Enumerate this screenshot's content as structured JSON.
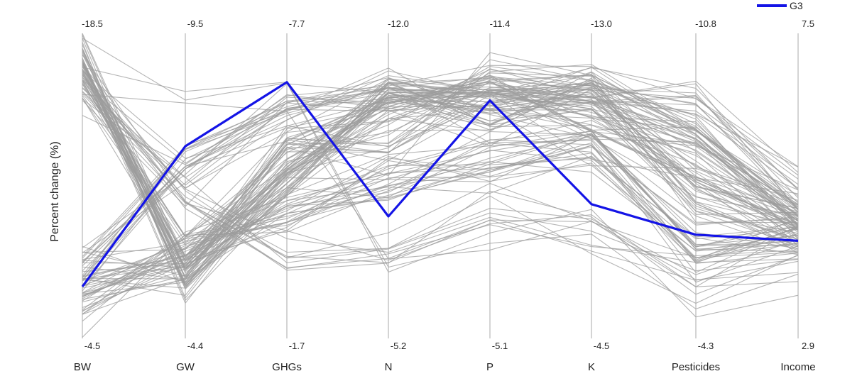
{
  "chart_data": {
    "type": "parallel-coordinates",
    "ylabel": "Percent change (%)",
    "axes": [
      {
        "name": "BW",
        "top": "-18.5",
        "bottom": "-4.5"
      },
      {
        "name": "GW",
        "top": "-9.5",
        "bottom": "-4.4"
      },
      {
        "name": "GHGs",
        "top": "-7.7",
        "bottom": "-1.7"
      },
      {
        "name": "N",
        "top": "-12.0",
        "bottom": "-5.2"
      },
      {
        "name": "P",
        "top": "-11.4",
        "bottom": "-5.1"
      },
      {
        "name": "K",
        "top": "-13.0",
        "bottom": "-4.5"
      },
      {
        "name": "Pesticides",
        "top": "-10.8",
        "bottom": "-4.3"
      },
      {
        "name": "Income",
        "top": "7.5",
        "bottom": "2.9"
      }
    ],
    "highlight": {
      "name": "G3",
      "color": "#1414e6",
      "values_fraction_from_top": [
        0.83,
        0.37,
        0.16,
        0.6,
        0.22,
        0.56,
        0.66,
        0.68
      ]
    },
    "background_lines": {
      "color": "#9c9c9c",
      "count": 120,
      "clusters": [
        {
          "weight": 0.24,
          "values": [
            0.08,
            0.8,
            0.48,
            0.22,
            0.27,
            0.2,
            0.52,
            0.63
          ]
        },
        {
          "weight": 0.18,
          "values": [
            0.14,
            0.74,
            0.4,
            0.2,
            0.19,
            0.22,
            0.3,
            0.57
          ]
        },
        {
          "weight": 0.16,
          "values": [
            0.8,
            0.8,
            0.38,
            0.37,
            0.18,
            0.17,
            0.3,
            0.6
          ]
        },
        {
          "weight": 0.12,
          "values": [
            0.86,
            0.72,
            0.58,
            0.48,
            0.42,
            0.38,
            0.7,
            0.67
          ]
        },
        {
          "weight": 0.1,
          "values": [
            0.2,
            0.48,
            0.26,
            0.17,
            0.17,
            0.16,
            0.22,
            0.5
          ]
        },
        {
          "weight": 0.08,
          "values": [
            0.78,
            0.4,
            0.24,
            0.18,
            0.2,
            0.32,
            0.42,
            0.62
          ]
        },
        {
          "weight": 0.07,
          "values": [
            0.15,
            0.52,
            0.72,
            0.74,
            0.58,
            0.63,
            0.79,
            0.73
          ]
        },
        {
          "weight": 0.05,
          "values": [
            0.1,
            0.22,
            0.2,
            0.72,
            0.66,
            0.58,
            0.83,
            0.82
          ]
        }
      ]
    },
    "legend": {
      "position": "top-right"
    },
    "grid": false
  }
}
